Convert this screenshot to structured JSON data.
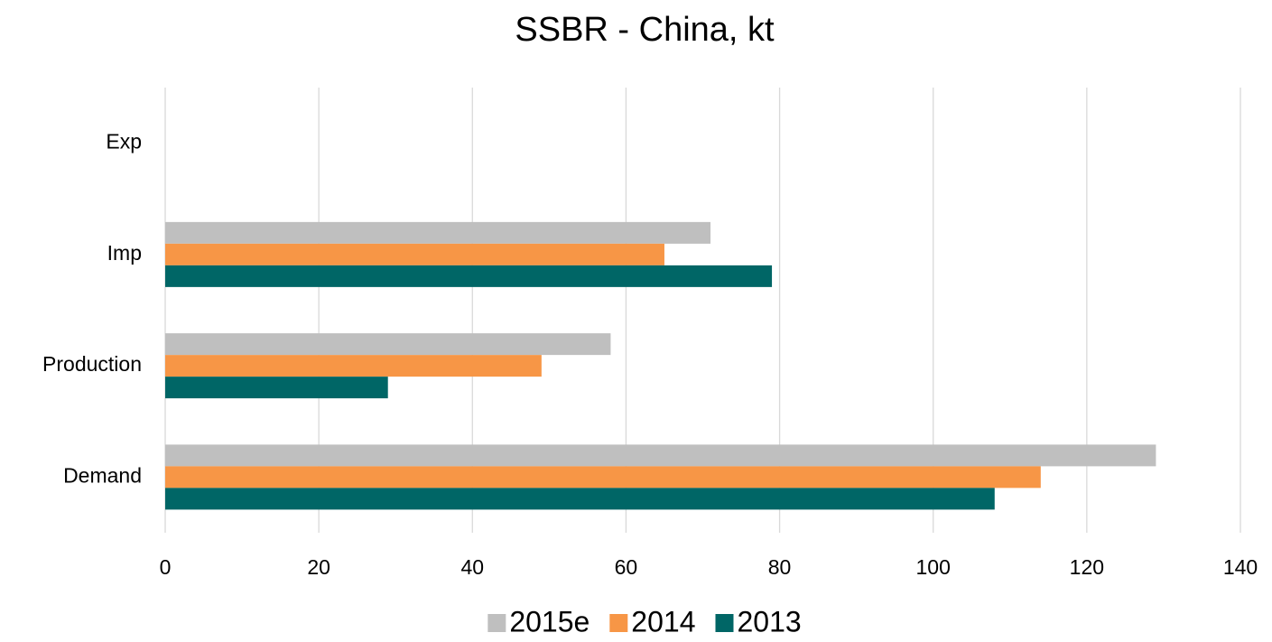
{
  "chart_data": {
    "type": "hbar",
    "title": "SSBR - China, kt",
    "categories": [
      "Exp",
      "Imp",
      "Production",
      "Demand"
    ],
    "series": [
      {
        "name": "2015e",
        "color": "#bfbfbf",
        "values": [
          0,
          71,
          58,
          129
        ]
      },
      {
        "name": "2014",
        "color": "#f79646",
        "values": [
          0,
          65,
          49,
          114
        ]
      },
      {
        "name": "2013",
        "color": "#006666",
        "values": [
          0,
          79,
          29,
          108
        ]
      }
    ],
    "xlim": [
      0,
      140
    ],
    "xticks": [
      0,
      20,
      40,
      60,
      80,
      100,
      120,
      140
    ],
    "grid": true,
    "legend": "bottom"
  }
}
